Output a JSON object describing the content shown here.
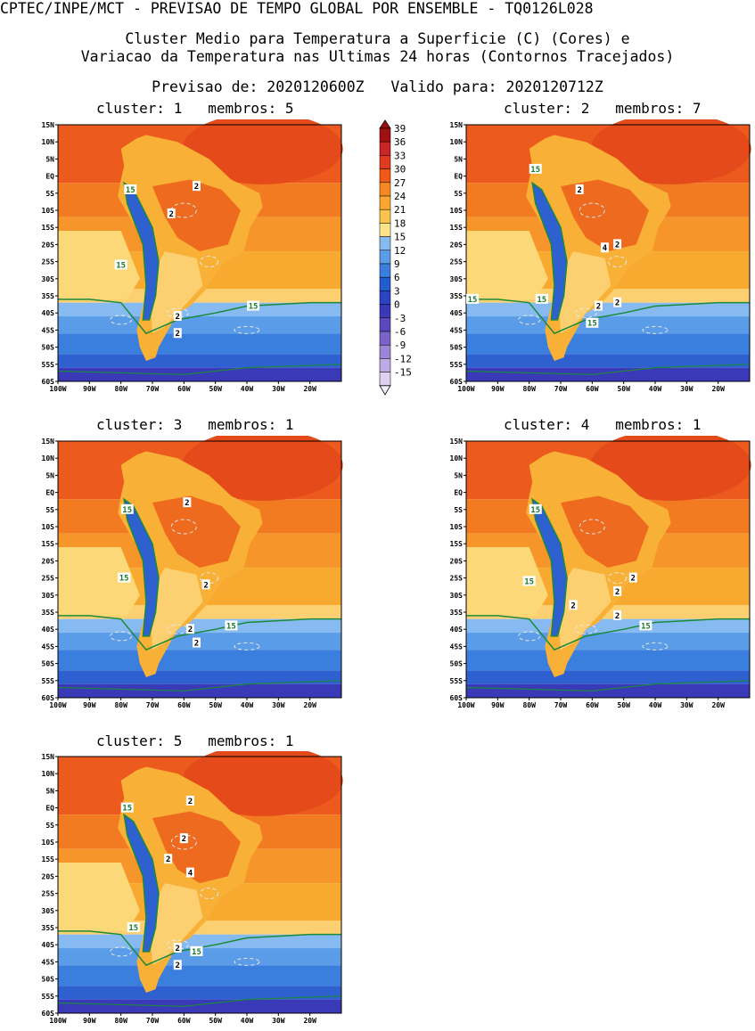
{
  "header": {
    "main": "CPTEC/INPE/MCT - PREVISAO DE TEMPO GLOBAL POR ENSEMBLE - TQ0126L028",
    "line1": "Cluster Medio para Temperatura a Superficie (C) (Cores) e",
    "line2": "Variacao da Temperatura nas Ultimas 24 horas (Contornos Tracejados)",
    "line3": "Previsao de: 2020120600Z   Valido para: 2020120712Z"
  },
  "lat_labels": [
    "15N",
    "10N",
    "5N",
    "EQ",
    "5S",
    "10S",
    "15S",
    "20S",
    "25S",
    "30S",
    "35S",
    "40S",
    "45S",
    "50S",
    "55S",
    "60S"
  ],
  "lon_labels": [
    "100W",
    "90W",
    "80W",
    "70W",
    "60W",
    "50W",
    "40W",
    "30W",
    "20W"
  ],
  "colorbar": {
    "labels": [
      "39",
      "36",
      "33",
      "30",
      "27",
      "24",
      "21",
      "18",
      "15",
      "12",
      "9",
      "6",
      "3",
      "0",
      "-3",
      "-6",
      "-9",
      "-12",
      "-15"
    ],
    "colors": [
      "#a01010",
      "#c8262a",
      "#e23a1e",
      "#f05a16",
      "#f68822",
      "#f8a82e",
      "#fbc44a",
      "#fde38a",
      "#86baf0",
      "#5a9ce8",
      "#3a7ede",
      "#225ed0",
      "#2a44c4",
      "#3a3ab8",
      "#5a4ac0",
      "#7a64c8",
      "#9a86d6",
      "#bcacE4",
      "#dcd2f0"
    ]
  },
  "panels": [
    {
      "title": "cluster: 1   membros: 5",
      "contour_labels": [
        "15",
        "15",
        "15",
        "2",
        "2",
        "2",
        "2"
      ]
    },
    {
      "title": "cluster: 2   membros: 7",
      "contour_labels": [
        "15",
        "15",
        "15",
        "15",
        "2",
        "4",
        "2",
        "2",
        "2"
      ]
    },
    {
      "title": "cluster: 3   membros: 1",
      "contour_labels": [
        "15",
        "15",
        "15",
        "2",
        "2",
        "2",
        "2"
      ]
    },
    {
      "title": "cluster: 4   membros: 1",
      "contour_labels": [
        "15",
        "15",
        "15",
        "2",
        "2",
        "2",
        "2"
      ]
    },
    {
      "title": "cluster: 5   membros: 1",
      "contour_labels": [
        "15",
        "15",
        "15",
        "2",
        "2",
        "2",
        "4",
        "2",
        "2"
      ]
    }
  ]
}
